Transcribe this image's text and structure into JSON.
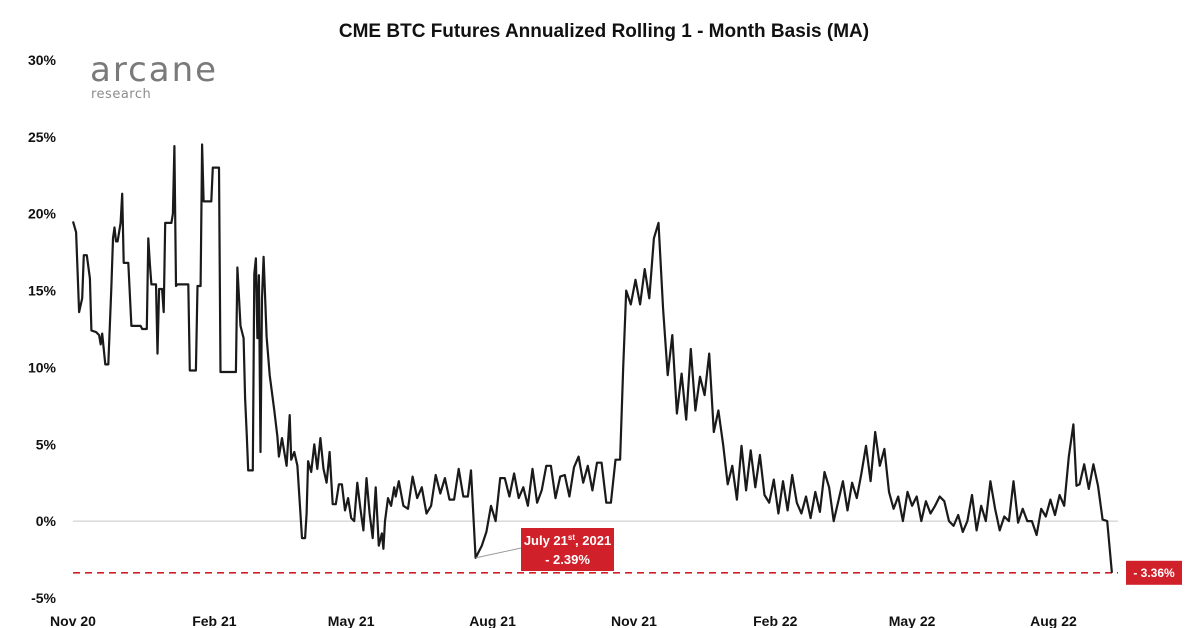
{
  "brand": {
    "name": "arcane",
    "subtitle": "research"
  },
  "chart_data": {
    "type": "line",
    "title": "CME BTC Futures Annualized Rolling 1 - Month Basis (MA)",
    "xlabel": "",
    "ylabel": "",
    "ylim": [
      -5,
      30
    ],
    "yticks": [
      "-5%",
      "0%",
      "5%",
      "10%",
      "15%",
      "20%",
      "25%",
      "30%"
    ],
    "yticks_values": [
      -5,
      0,
      5,
      10,
      15,
      20,
      25,
      30
    ],
    "x_axis": "date",
    "x_range": [
      "2020-11-01",
      "2022-09-12"
    ],
    "xticks": [
      {
        "date": "2020-11-01",
        "label": "Nov 20"
      },
      {
        "date": "2021-02-01",
        "label": "Feb 21"
      },
      {
        "date": "2021-05-01",
        "label": "May 21"
      },
      {
        "date": "2021-08-01",
        "label": "Aug 21"
      },
      {
        "date": "2021-11-01",
        "label": "Nov 21"
      },
      {
        "date": "2022-02-01",
        "label": "Feb 22"
      },
      {
        "date": "2022-05-01",
        "label": "May 22"
      },
      {
        "date": "2022-08-01",
        "label": "Aug 22"
      }
    ],
    "grid": false,
    "series": [
      {
        "color": "#1a1a1a",
        "points": [
          [
            "2020-11-01",
            19.5
          ],
          [
            "2020-11-03",
            18.8
          ],
          [
            "2020-11-05",
            13.6
          ],
          [
            "2020-11-07",
            14.5
          ],
          [
            "2020-11-08",
            17.3
          ],
          [
            "2020-11-10",
            17.3
          ],
          [
            "2020-11-12",
            15.8
          ],
          [
            "2020-11-13",
            12.4
          ],
          [
            "2020-11-16",
            12.3
          ],
          [
            "2020-11-18",
            12.1
          ],
          [
            "2020-11-19",
            11.5
          ],
          [
            "2020-11-20",
            12.2
          ],
          [
            "2020-11-22",
            10.2
          ],
          [
            "2020-11-24",
            10.2
          ],
          [
            "2020-11-26",
            15.3
          ],
          [
            "2020-11-27",
            18.4
          ],
          [
            "2020-11-28",
            19.1
          ],
          [
            "2020-11-29",
            18.2
          ],
          [
            "2020-11-30",
            18.2
          ],
          [
            "2020-12-02",
            19.4
          ],
          [
            "2020-12-03",
            21.3
          ],
          [
            "2020-12-04",
            16.8
          ],
          [
            "2020-12-07",
            16.8
          ],
          [
            "2020-12-09",
            12.7
          ],
          [
            "2020-12-15",
            12.7
          ],
          [
            "2020-12-16",
            12.5
          ],
          [
            "2020-12-19",
            12.5
          ],
          [
            "2020-12-20",
            18.4
          ],
          [
            "2020-12-21",
            16.8
          ],
          [
            "2020-12-22",
            15.4
          ],
          [
            "2020-12-25",
            15.4
          ],
          [
            "2020-12-26",
            10.9
          ],
          [
            "2020-12-27",
            15.1
          ],
          [
            "2020-12-29",
            15.1
          ],
          [
            "2020-12-30",
            13.6
          ],
          [
            "2020-12-31",
            19.4
          ],
          [
            "2021-01-04",
            19.4
          ],
          [
            "2021-01-05",
            20.0
          ],
          [
            "2021-01-06",
            24.4
          ],
          [
            "2021-01-07",
            15.3
          ],
          [
            "2021-01-08",
            15.4
          ],
          [
            "2021-01-15",
            15.4
          ],
          [
            "2021-01-16",
            9.8
          ],
          [
            "2021-01-20",
            9.8
          ],
          [
            "2021-01-21",
            15.3
          ],
          [
            "2021-01-23",
            15.3
          ],
          [
            "2021-01-24",
            24.5
          ],
          [
            "2021-01-25",
            20.8
          ],
          [
            "2021-01-30",
            20.8
          ],
          [
            "2021-01-31",
            23.0
          ],
          [
            "2021-02-04",
            23.0
          ],
          [
            "2021-02-05",
            9.7
          ],
          [
            "2021-02-15",
            9.7
          ],
          [
            "2021-02-16",
            16.5
          ],
          [
            "2021-02-18",
            12.7
          ],
          [
            "2021-02-20",
            11.9
          ],
          [
            "2021-02-21",
            8.0
          ],
          [
            "2021-02-22",
            5.7
          ],
          [
            "2021-02-23",
            3.3
          ],
          [
            "2021-02-26",
            3.3
          ],
          [
            "2021-02-27",
            16.1
          ],
          [
            "2021-02-28",
            17.1
          ],
          [
            "2021-03-01",
            11.9
          ],
          [
            "2021-03-02",
            16.0
          ],
          [
            "2021-03-03",
            4.5
          ],
          [
            "2021-03-04",
            14.5
          ],
          [
            "2021-03-05",
            17.2
          ],
          [
            "2021-03-07",
            12.0
          ],
          [
            "2021-03-09",
            9.5
          ],
          [
            "2021-03-12",
            7.2
          ],
          [
            "2021-03-14",
            5.5
          ],
          [
            "2021-03-15",
            4.2
          ],
          [
            "2021-03-17",
            5.4
          ],
          [
            "2021-03-20",
            3.6
          ],
          [
            "2021-03-22",
            6.9
          ],
          [
            "2021-03-23",
            4.0
          ],
          [
            "2021-03-25",
            4.5
          ],
          [
            "2021-03-27",
            3.6
          ],
          [
            "2021-03-30",
            -1.1
          ],
          [
            "2021-04-01",
            -1.1
          ],
          [
            "2021-04-02",
            0.5
          ],
          [
            "2021-04-03",
            3.9
          ],
          [
            "2021-04-05",
            3.2
          ],
          [
            "2021-04-07",
            5.0
          ],
          [
            "2021-04-09",
            3.4
          ],
          [
            "2021-04-11",
            5.4
          ],
          [
            "2021-04-13",
            3.4
          ],
          [
            "2021-04-15",
            2.5
          ],
          [
            "2021-04-17",
            4.5
          ],
          [
            "2021-04-19",
            1.1
          ],
          [
            "2021-04-21",
            1.1
          ],
          [
            "2021-04-23",
            2.4
          ],
          [
            "2021-04-25",
            2.4
          ],
          [
            "2021-04-27",
            0.7
          ],
          [
            "2021-04-29",
            1.5
          ],
          [
            "2021-05-01",
            0.2
          ],
          [
            "2021-05-03",
            0.0
          ],
          [
            "2021-05-05",
            2.5
          ],
          [
            "2021-05-07",
            0.8
          ],
          [
            "2021-05-09",
            -0.6
          ],
          [
            "2021-05-11",
            2.8
          ],
          [
            "2021-05-13",
            0.5
          ],
          [
            "2021-05-15",
            -1.1
          ],
          [
            "2021-05-17",
            2.2
          ],
          [
            "2021-05-19",
            -1.6
          ],
          [
            "2021-05-21",
            -0.8
          ],
          [
            "2021-05-22",
            -1.8
          ],
          [
            "2021-05-23",
            0.0
          ],
          [
            "2021-05-25",
            1.5
          ],
          [
            "2021-05-27",
            1.0
          ],
          [
            "2021-05-29",
            2.2
          ],
          [
            "2021-05-30",
            1.6
          ],
          [
            "2021-06-01",
            2.6
          ],
          [
            "2021-06-04",
            1.0
          ],
          [
            "2021-06-07",
            0.8
          ],
          [
            "2021-06-10",
            2.9
          ],
          [
            "2021-06-13",
            1.5
          ],
          [
            "2021-06-16",
            2.2
          ],
          [
            "2021-06-19",
            0.5
          ],
          [
            "2021-06-22",
            1.0
          ],
          [
            "2021-06-25",
            3.0
          ],
          [
            "2021-06-28",
            1.8
          ],
          [
            "2021-07-01",
            2.8
          ],
          [
            "2021-07-04",
            1.4
          ],
          [
            "2021-07-07",
            1.4
          ],
          [
            "2021-07-10",
            3.4
          ],
          [
            "2021-07-13",
            1.6
          ],
          [
            "2021-07-16",
            1.6
          ],
          [
            "2021-07-18",
            3.3
          ],
          [
            "2021-07-21",
            -2.39
          ],
          [
            "2021-07-25",
            -1.6
          ],
          [
            "2021-07-28",
            -0.7
          ],
          [
            "2021-07-31",
            1.0
          ],
          [
            "2021-08-03",
            0.0
          ],
          [
            "2021-08-06",
            2.8
          ],
          [
            "2021-08-09",
            2.8
          ],
          [
            "2021-08-12",
            1.6
          ],
          [
            "2021-08-15",
            3.1
          ],
          [
            "2021-08-18",
            1.5
          ],
          [
            "2021-08-21",
            2.2
          ],
          [
            "2021-08-24",
            1.0
          ],
          [
            "2021-08-27",
            3.4
          ],
          [
            "2021-08-30",
            1.2
          ],
          [
            "2021-09-02",
            2.0
          ],
          [
            "2021-09-05",
            3.6
          ],
          [
            "2021-09-08",
            3.6
          ],
          [
            "2021-09-11",
            1.5
          ],
          [
            "2021-09-14",
            2.9
          ],
          [
            "2021-09-17",
            3.0
          ],
          [
            "2021-09-20",
            1.6
          ],
          [
            "2021-09-23",
            3.5
          ],
          [
            "2021-09-26",
            4.2
          ],
          [
            "2021-09-29",
            2.5
          ],
          [
            "2021-10-02",
            3.6
          ],
          [
            "2021-10-05",
            2.0
          ],
          [
            "2021-10-08",
            3.8
          ],
          [
            "2021-10-11",
            3.8
          ],
          [
            "2021-10-14",
            1.2
          ],
          [
            "2021-10-17",
            1.2
          ],
          [
            "2021-10-20",
            4.0
          ],
          [
            "2021-10-23",
            4.0
          ],
          [
            "2021-10-25",
            10.0
          ],
          [
            "2021-10-27",
            15.0
          ],
          [
            "2021-10-30",
            14.1
          ],
          [
            "2021-11-02",
            15.7
          ],
          [
            "2021-11-05",
            14.1
          ],
          [
            "2021-11-08",
            16.4
          ],
          [
            "2021-11-11",
            14.5
          ],
          [
            "2021-11-14",
            18.4
          ],
          [
            "2021-11-17",
            19.4
          ],
          [
            "2021-11-20",
            13.8
          ],
          [
            "2021-11-23",
            9.5
          ],
          [
            "2021-11-26",
            12.1
          ],
          [
            "2021-11-29",
            7.0
          ],
          [
            "2021-12-02",
            9.6
          ],
          [
            "2021-12-05",
            6.6
          ],
          [
            "2021-12-08",
            11.2
          ],
          [
            "2021-12-11",
            7.2
          ],
          [
            "2021-12-14",
            9.4
          ],
          [
            "2021-12-17",
            8.2
          ],
          [
            "2021-12-20",
            10.9
          ],
          [
            "2021-12-23",
            5.8
          ],
          [
            "2021-12-26",
            7.2
          ],
          [
            "2021-12-29",
            5.0
          ],
          [
            "2022-01-01",
            2.4
          ],
          [
            "2022-01-04",
            3.6
          ],
          [
            "2022-01-07",
            1.4
          ],
          [
            "2022-01-10",
            4.9
          ],
          [
            "2022-01-13",
            2.0
          ],
          [
            "2022-01-16",
            4.6
          ],
          [
            "2022-01-19",
            2.2
          ],
          [
            "2022-01-22",
            4.3
          ],
          [
            "2022-01-25",
            1.7
          ],
          [
            "2022-01-28",
            1.2
          ],
          [
            "2022-01-31",
            2.7
          ],
          [
            "2022-02-03",
            0.5
          ],
          [
            "2022-02-06",
            2.6
          ],
          [
            "2022-02-09",
            0.7
          ],
          [
            "2022-02-12",
            3.0
          ],
          [
            "2022-02-15",
            1.2
          ],
          [
            "2022-02-18",
            0.5
          ],
          [
            "2022-02-21",
            1.6
          ],
          [
            "2022-02-24",
            0.2
          ],
          [
            "2022-02-27",
            1.9
          ],
          [
            "2022-03-02",
            0.6
          ],
          [
            "2022-03-05",
            3.2
          ],
          [
            "2022-03-08",
            2.2
          ],
          [
            "2022-03-11",
            0.0
          ],
          [
            "2022-03-14",
            1.3
          ],
          [
            "2022-03-17",
            2.6
          ],
          [
            "2022-03-20",
            0.7
          ],
          [
            "2022-03-23",
            2.5
          ],
          [
            "2022-03-26",
            1.5
          ],
          [
            "2022-03-29",
            3.1
          ],
          [
            "2022-04-01",
            4.9
          ],
          [
            "2022-04-04",
            2.6
          ],
          [
            "2022-04-07",
            5.8
          ],
          [
            "2022-04-10",
            3.6
          ],
          [
            "2022-04-13",
            4.7
          ],
          [
            "2022-04-16",
            1.9
          ],
          [
            "2022-04-19",
            0.8
          ],
          [
            "2022-04-22",
            1.6
          ],
          [
            "2022-04-25",
            0.0
          ],
          [
            "2022-04-28",
            1.9
          ],
          [
            "2022-05-01",
            1.0
          ],
          [
            "2022-05-04",
            1.6
          ],
          [
            "2022-05-07",
            0.0
          ],
          [
            "2022-05-10",
            1.3
          ],
          [
            "2022-05-13",
            0.5
          ],
          [
            "2022-05-16",
            1.0
          ],
          [
            "2022-05-19",
            1.6
          ],
          [
            "2022-05-22",
            1.3
          ],
          [
            "2022-05-25",
            0.0
          ],
          [
            "2022-05-28",
            -0.3
          ],
          [
            "2022-05-31",
            0.4
          ],
          [
            "2022-06-03",
            -0.7
          ],
          [
            "2022-06-06",
            0.0
          ],
          [
            "2022-06-09",
            1.7
          ],
          [
            "2022-06-12",
            -0.6
          ],
          [
            "2022-06-15",
            1.0
          ],
          [
            "2022-06-18",
            0.0
          ],
          [
            "2022-06-21",
            2.6
          ],
          [
            "2022-06-24",
            0.8
          ],
          [
            "2022-06-27",
            -0.6
          ],
          [
            "2022-06-30",
            0.3
          ],
          [
            "2022-07-03",
            0.0
          ],
          [
            "2022-07-06",
            2.6
          ],
          [
            "2022-07-09",
            -0.1
          ],
          [
            "2022-07-12",
            0.8
          ],
          [
            "2022-07-15",
            0.0
          ],
          [
            "2022-07-18",
            0.0
          ],
          [
            "2022-07-21",
            -0.9
          ],
          [
            "2022-07-24",
            0.8
          ],
          [
            "2022-07-27",
            0.3
          ],
          [
            "2022-07-30",
            1.4
          ],
          [
            "2022-08-02",
            0.4
          ],
          [
            "2022-08-05",
            1.7
          ],
          [
            "2022-08-08",
            1.0
          ],
          [
            "2022-08-11",
            4.2
          ],
          [
            "2022-08-14",
            6.3
          ],
          [
            "2022-08-16",
            2.3
          ],
          [
            "2022-08-18",
            2.4
          ],
          [
            "2022-08-21",
            3.7
          ],
          [
            "2022-08-24",
            2.1
          ],
          [
            "2022-08-27",
            3.7
          ],
          [
            "2022-08-30",
            2.3
          ],
          [
            "2022-09-02",
            0.1
          ],
          [
            "2022-09-05",
            0.0
          ],
          [
            "2022-09-08",
            -3.36
          ]
        ]
      }
    ],
    "reference_line": {
      "value": -3.36,
      "color": "#d0202a",
      "style": "dashed"
    },
    "annotations": [
      {
        "date": "2021-07-21",
        "value": -2.39,
        "line1_main": "July 21",
        "line1_sup": "st",
        "line1_tail": ", 2021",
        "line2": "- 2.39%"
      }
    ],
    "end_label": {
      "text": "- 3.36%",
      "value": -3.36
    },
    "accent_color": "#d0202a"
  }
}
